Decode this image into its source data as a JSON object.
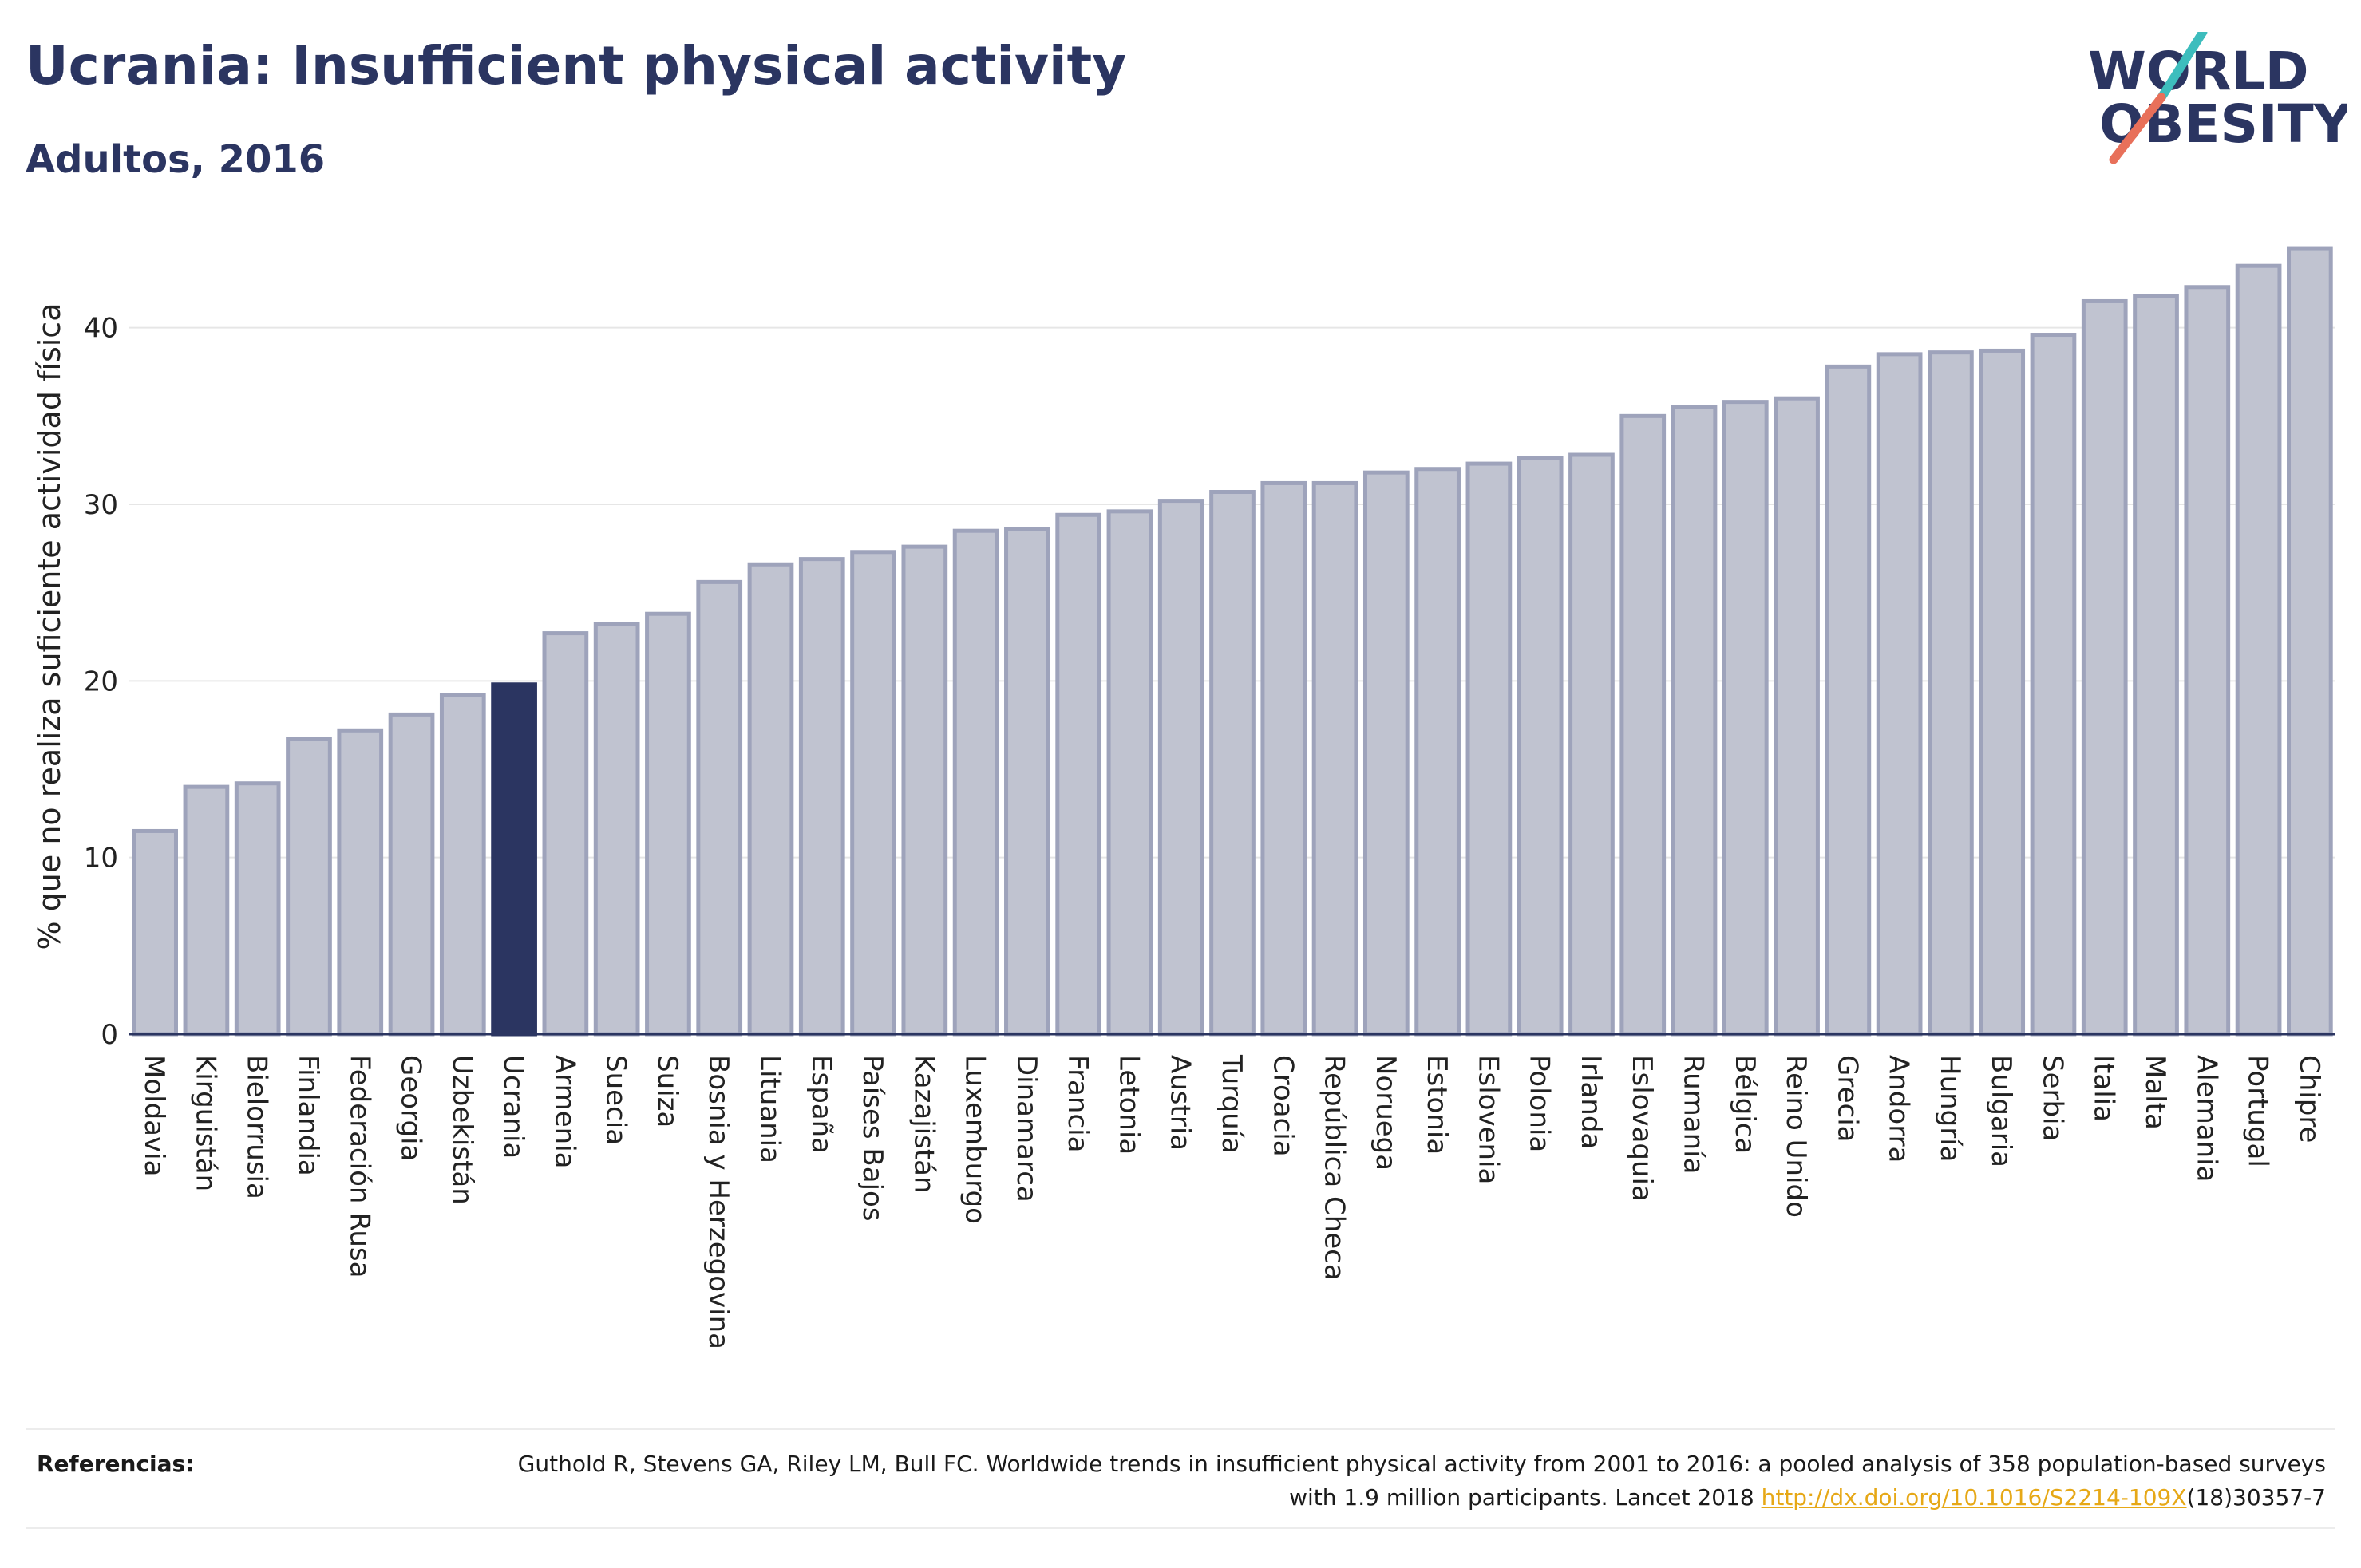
{
  "header": {
    "title": "Ucrania: Insufficient physical activity",
    "subtitle": "Adultos, 2016"
  },
  "logo": {
    "line1": "WORLD",
    "line2": "OBESITY",
    "colors": {
      "text": "#2b3561",
      "slash_teal": "#3dbdbd",
      "slash_coral": "#e8705a"
    }
  },
  "chart_data": {
    "type": "bar",
    "ylabel": "% que no realiza suficiente actividad física",
    "xlabel": "",
    "ylim": [
      0,
      45
    ],
    "yticks": [
      0,
      10,
      20,
      30,
      40
    ],
    "grid": true,
    "highlight": "Ucrania",
    "colors": {
      "bar": "#c0c3d0",
      "bar_edge": "#9ea3bb",
      "highlight": "#2b3561",
      "grid": "#e6e6e6",
      "axis": "#2b3561"
    },
    "categories": [
      "Moldavia",
      "Kirguistán",
      "Bielorrusia",
      "Finlandia",
      "Federación Rusa",
      "Georgia",
      "Uzbekistán",
      "Ucrania",
      "Armenia",
      "Suecia",
      "Suiza",
      "Bosnia y Herzegovina",
      "Lituania",
      "España",
      "Países Bajos",
      "Kazajistán",
      "Luxemburgo",
      "Dinamarca",
      "Francia",
      "Letonia",
      "Austria",
      "Turquía",
      "Croacia",
      "República Checa",
      "Noruega",
      "Estonia",
      "Eslovenia",
      "Polonia",
      "Irlanda",
      "Eslovaquia",
      "Rumanía",
      "Bélgica",
      "Reino Unido",
      "Grecia",
      "Andorra",
      "Hungría",
      "Bulgaria",
      "Serbia",
      "Italia",
      "Malta",
      "Alemania",
      "Portugal",
      "Chipre"
    ],
    "values": [
      11.5,
      14.0,
      14.2,
      16.7,
      17.2,
      18.1,
      19.2,
      19.8,
      22.7,
      23.2,
      23.8,
      25.6,
      26.6,
      26.9,
      27.3,
      27.6,
      28.5,
      28.6,
      29.4,
      29.6,
      30.2,
      30.7,
      31.2,
      31.2,
      31.8,
      32.0,
      32.3,
      32.6,
      32.8,
      35.0,
      35.5,
      35.8,
      36.0,
      37.8,
      38.5,
      38.6,
      38.7,
      39.6,
      41.5,
      41.8,
      42.3,
      43.5,
      44.5
    ]
  },
  "references": {
    "label": "Referencias:",
    "text_before": "Guthold R, Stevens GA, Riley LM, Bull FC. Worldwide trends in insufficient physical activity from 2001 to 2016: a pooled analysis of 358 population-based surveys with 1.9 million participants. Lancet 2018 ",
    "link": "http://dx.doi.org/10.1016/S2214-109X",
    "text_after": "(18)30357-7"
  }
}
